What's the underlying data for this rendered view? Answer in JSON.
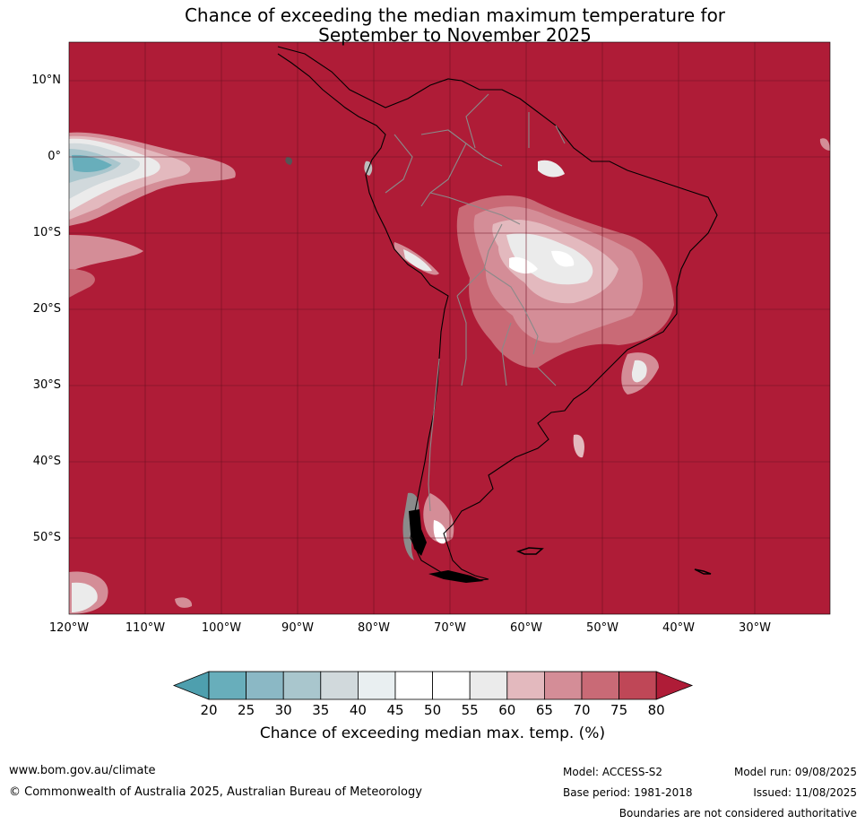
{
  "title": {
    "line1": "Chance of exceeding the median maximum temperature for",
    "line2": "September to November 2025"
  },
  "map": {
    "lat_labels": [
      "10°N",
      "0°",
      "10°S",
      "20°S",
      "30°S",
      "40°S",
      "50°S"
    ],
    "lon_labels": [
      "120°W",
      "110°W",
      "100°W",
      "90°W",
      "80°W",
      "70°W",
      "60°W",
      "50°W",
      "40°W",
      "30°W"
    ]
  },
  "colorbar": {
    "ticks": [
      "20",
      "25",
      "30",
      "35",
      "40",
      "45",
      "50",
      "55",
      "60",
      "65",
      "70",
      "75",
      "80"
    ],
    "colors": [
      "#68aebb",
      "#8bb8c5",
      "#a9c6cd",
      "#d1d9dc",
      "#e9eff1",
      "#ffffff",
      "#ffffff",
      "#ebebeb",
      "#e3b9be",
      "#d48d97",
      "#c96a76",
      "#bf4757"
    ],
    "under_color": "#4e9fae",
    "over_color": "#af1c37",
    "label": "Chance of exceeding median max. temp. (%)"
  },
  "footer": {
    "website": "www.bom.gov.au/climate",
    "copyright": "© Commonwealth of Australia 2025, Australian Bureau of Meteorology",
    "model": "Model: ACCESS-S2",
    "base_period": "Base period: 1981-2018",
    "model_run": "Model run: 09/08/2025",
    "issued": "Issued: 11/08/2025",
    "disclaimer": "Boundaries are not considered authoritative"
  }
}
